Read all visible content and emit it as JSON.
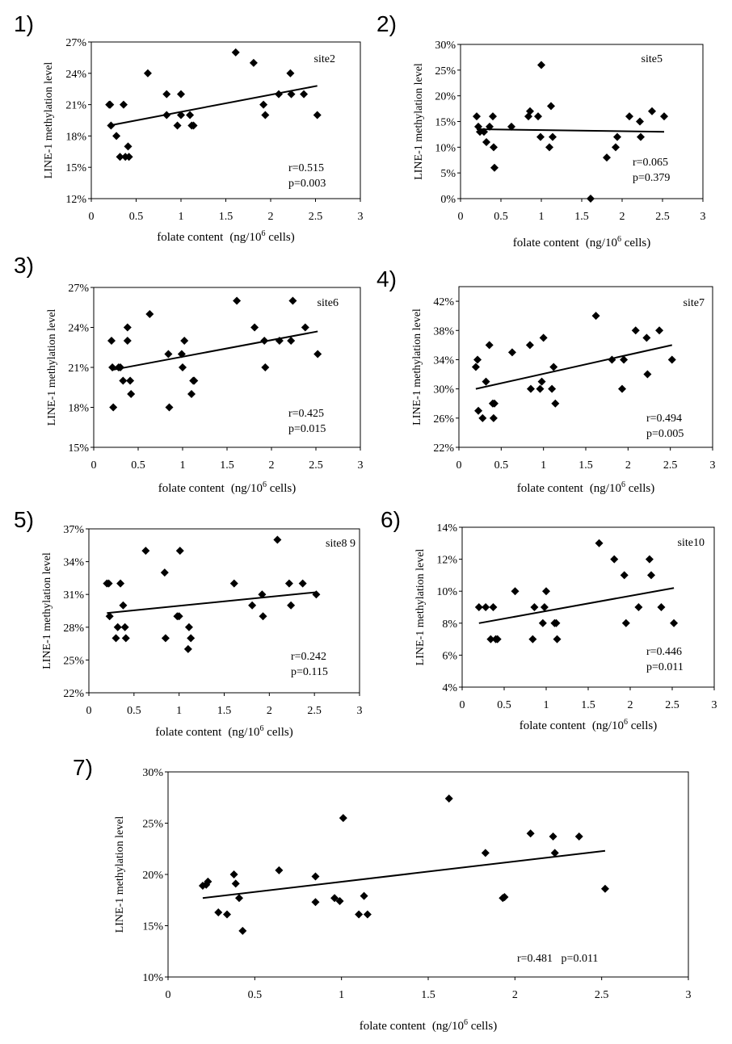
{
  "chart_data": [
    {
      "panel": "1)",
      "type": "scatter",
      "annotation": "site2",
      "stats": [
        "r=0.515",
        "p=0.003"
      ],
      "ylabel": "LINE-1 methylation level",
      "xlabel": [
        "folate content",
        "(ng/10",
        "6",
        " cells)"
      ],
      "xlim": [
        0,
        3
      ],
      "ylim": [
        0.12,
        0.27
      ],
      "xticks": [
        0,
        0.5,
        1,
        1.5,
        2,
        2.5,
        3
      ],
      "xtick_labels": [
        "0",
        "0.5",
        "1",
        "1.5",
        "2",
        "2.5",
        "3"
      ],
      "yticks": [
        0.12,
        0.15,
        0.18,
        0.21,
        0.24,
        0.27
      ],
      "ytick_labels": [
        "12%",
        "15%",
        "18%",
        "21%",
        "24%",
        "27%"
      ],
      "trend": [
        [
          0.2,
          0.19
        ],
        [
          2.52,
          0.228
        ]
      ],
      "points": [
        [
          0.2,
          0.21
        ],
        [
          0.21,
          0.21
        ],
        [
          0.22,
          0.19
        ],
        [
          0.28,
          0.18
        ],
        [
          0.32,
          0.16
        ],
        [
          0.36,
          0.21
        ],
        [
          0.38,
          0.16
        ],
        [
          0.41,
          0.17
        ],
        [
          0.42,
          0.16
        ],
        [
          0.63,
          0.24
        ],
        [
          0.84,
          0.22
        ],
        [
          0.84,
          0.2
        ],
        [
          0.96,
          0.19
        ],
        [
          1.0,
          0.22
        ],
        [
          1.0,
          0.2
        ],
        [
          1.1,
          0.2
        ],
        [
          1.12,
          0.19
        ],
        [
          1.14,
          0.19
        ],
        [
          1.61,
          0.26
        ],
        [
          1.81,
          0.25
        ],
        [
          1.92,
          0.21
        ],
        [
          1.94,
          0.2
        ],
        [
          2.09,
          0.22
        ],
        [
          2.22,
          0.24
        ],
        [
          2.23,
          0.22
        ],
        [
          2.37,
          0.22
        ],
        [
          2.52,
          0.2
        ]
      ]
    },
    {
      "panel": "2)",
      "type": "scatter",
      "annotation": "site5",
      "stats": [
        "r=0.065",
        "p=0.379"
      ],
      "ylabel": "LINE-1 methylation level",
      "xlabel": [
        "folate content",
        "(ng/10",
        "6",
        " cells)"
      ],
      "xlim": [
        0,
        3
      ],
      "ylim": [
        0,
        0.3
      ],
      "xticks": [
        0,
        0.5,
        1,
        1.5,
        2,
        2.5,
        3
      ],
      "xtick_labels": [
        "0",
        "0.5",
        "1",
        "1.5",
        "2",
        "2.5",
        "3"
      ],
      "yticks": [
        0,
        0.05,
        0.1,
        0.15,
        0.2,
        0.25,
        0.3
      ],
      "ytick_labels": [
        "0%",
        "5%",
        "10%",
        "15%",
        "20%",
        "25%",
        "30%"
      ],
      "trend": [
        [
          0.2,
          0.135
        ],
        [
          2.52,
          0.13
        ]
      ],
      "points": [
        [
          0.2,
          0.16
        ],
        [
          0.22,
          0.14
        ],
        [
          0.24,
          0.13
        ],
        [
          0.29,
          0.13
        ],
        [
          0.32,
          0.11
        ],
        [
          0.36,
          0.14
        ],
        [
          0.4,
          0.16
        ],
        [
          0.41,
          0.1
        ],
        [
          0.42,
          0.06
        ],
        [
          0.63,
          0.14
        ],
        [
          0.84,
          0.16
        ],
        [
          0.86,
          0.17
        ],
        [
          0.96,
          0.16
        ],
        [
          0.99,
          0.12
        ],
        [
          1.0,
          0.26
        ],
        [
          1.1,
          0.1
        ],
        [
          1.12,
          0.18
        ],
        [
          1.14,
          0.12
        ],
        [
          1.61,
          0.0
        ],
        [
          1.81,
          0.08
        ],
        [
          1.92,
          0.1
        ],
        [
          1.94,
          0.12
        ],
        [
          2.09,
          0.16
        ],
        [
          2.22,
          0.15
        ],
        [
          2.23,
          0.12
        ],
        [
          2.37,
          0.17
        ],
        [
          2.52,
          0.16
        ]
      ]
    },
    {
      "panel": "3)",
      "type": "scatter",
      "annotation": "site6",
      "stats": [
        "r=0.425",
        "p=0.015"
      ],
      "ylabel": "LINE-1 methylation level",
      "xlabel": [
        "folate content",
        "(ng/10",
        "6",
        " cells)"
      ],
      "xlim": [
        0,
        3
      ],
      "ylim": [
        0.15,
        0.27
      ],
      "xticks": [
        0,
        0.5,
        1,
        1.5,
        2,
        2.5,
        3
      ],
      "xtick_labels": [
        "0",
        "0.5",
        "1",
        "1.5",
        "2",
        "2.5",
        "3"
      ],
      "yticks": [
        0.15,
        0.18,
        0.21,
        0.24,
        0.27
      ],
      "ytick_labels": [
        "15%",
        "18%",
        "21%",
        "24%",
        "27%"
      ],
      "trend": [
        [
          0.2,
          0.208
        ],
        [
          2.52,
          0.237
        ]
      ],
      "points": [
        [
          0.2,
          0.23
        ],
        [
          0.21,
          0.21
        ],
        [
          0.22,
          0.18
        ],
        [
          0.28,
          0.21
        ],
        [
          0.3,
          0.21
        ],
        [
          0.33,
          0.2
        ],
        [
          0.38,
          0.23
        ],
        [
          0.38,
          0.24
        ],
        [
          0.41,
          0.2
        ],
        [
          0.42,
          0.19
        ],
        [
          0.63,
          0.25
        ],
        [
          0.84,
          0.22
        ],
        [
          0.85,
          0.18
        ],
        [
          0.99,
          0.22
        ],
        [
          1.0,
          0.21
        ],
        [
          1.02,
          0.23
        ],
        [
          1.1,
          0.19
        ],
        [
          1.12,
          0.2
        ],
        [
          1.13,
          0.2
        ],
        [
          1.61,
          0.26
        ],
        [
          1.81,
          0.24
        ],
        [
          1.92,
          0.23
        ],
        [
          1.93,
          0.21
        ],
        [
          2.09,
          0.23
        ],
        [
          2.22,
          0.23
        ],
        [
          2.24,
          0.26
        ],
        [
          2.38,
          0.24
        ],
        [
          2.52,
          0.22
        ]
      ]
    },
    {
      "panel": "4)",
      "type": "scatter",
      "annotation": "site7",
      "stats": [
        "r=0.494",
        "p=0.005"
      ],
      "ylabel": "LINE-1 methylation level",
      "xlabel": [
        "folate content",
        "(ng/10",
        "6",
        " cells)"
      ],
      "xlim": [
        0,
        3
      ],
      "ylim": [
        0.22,
        0.44
      ],
      "xticks": [
        0,
        0.5,
        1,
        1.5,
        2,
        2.5,
        3
      ],
      "xtick_labels": [
        "0",
        "0.5",
        "1",
        "1.5",
        "2",
        "2.5",
        "3"
      ],
      "yticks": [
        0.22,
        0.26,
        0.3,
        0.34,
        0.38,
        0.42
      ],
      "ytick_labels": [
        "22%",
        "26%",
        "30%",
        "34%",
        "38%",
        "42%"
      ],
      "trend": [
        [
          0.2,
          0.3
        ],
        [
          2.52,
          0.36
        ]
      ],
      "points": [
        [
          0.2,
          0.33
        ],
        [
          0.22,
          0.34
        ],
        [
          0.23,
          0.27
        ],
        [
          0.28,
          0.26
        ],
        [
          0.32,
          0.31
        ],
        [
          0.36,
          0.36
        ],
        [
          0.4,
          0.28
        ],
        [
          0.41,
          0.26
        ],
        [
          0.42,
          0.28
        ],
        [
          0.63,
          0.35
        ],
        [
          0.84,
          0.36
        ],
        [
          0.85,
          0.3
        ],
        [
          0.96,
          0.3
        ],
        [
          0.98,
          0.31
        ],
        [
          1.0,
          0.37
        ],
        [
          1.1,
          0.3
        ],
        [
          1.12,
          0.33
        ],
        [
          1.14,
          0.28
        ],
        [
          1.62,
          0.4
        ],
        [
          1.81,
          0.34
        ],
        [
          1.93,
          0.3
        ],
        [
          1.95,
          0.34
        ],
        [
          2.09,
          0.38
        ],
        [
          2.22,
          0.37
        ],
        [
          2.23,
          0.32
        ],
        [
          2.37,
          0.38
        ],
        [
          2.52,
          0.34
        ]
      ]
    },
    {
      "panel": "5)",
      "type": "scatter",
      "annotation": "site8 9",
      "stats": [
        "r=0.242",
        "p=0.115"
      ],
      "ylabel": "LINE-1 methylation level",
      "xlabel": [
        "folate content",
        "(ng/10",
        "6",
        " cells)"
      ],
      "xlim": [
        0,
        3
      ],
      "ylim": [
        0.22,
        0.37
      ],
      "xticks": [
        0,
        0.5,
        1,
        1.5,
        2,
        2.5,
        3
      ],
      "xtick_labels": [
        "0",
        "0.5",
        "1",
        "1.5",
        "2",
        "2.5",
        "3"
      ],
      "yticks": [
        0.22,
        0.25,
        0.28,
        0.31,
        0.34,
        0.37
      ],
      "ytick_labels": [
        "22%",
        "25%",
        "28%",
        "31%",
        "34%",
        "37%"
      ],
      "trend": [
        [
          0.2,
          0.293
        ],
        [
          2.52,
          0.312
        ]
      ],
      "points": [
        [
          0.2,
          0.32
        ],
        [
          0.22,
          0.32
        ],
        [
          0.23,
          0.29
        ],
        [
          0.3,
          0.27
        ],
        [
          0.32,
          0.28
        ],
        [
          0.35,
          0.32
        ],
        [
          0.38,
          0.3
        ],
        [
          0.4,
          0.28
        ],
        [
          0.41,
          0.27
        ],
        [
          0.63,
          0.35
        ],
        [
          0.84,
          0.33
        ],
        [
          0.85,
          0.27
        ],
        [
          0.98,
          0.29
        ],
        [
          1.0,
          0.29
        ],
        [
          1.01,
          0.35
        ],
        [
          1.1,
          0.26
        ],
        [
          1.11,
          0.28
        ],
        [
          1.13,
          0.27
        ],
        [
          1.61,
          0.32
        ],
        [
          1.81,
          0.3
        ],
        [
          1.92,
          0.31
        ],
        [
          1.93,
          0.29
        ],
        [
          2.09,
          0.36
        ],
        [
          2.22,
          0.32
        ],
        [
          2.24,
          0.3
        ],
        [
          2.37,
          0.32
        ],
        [
          2.52,
          0.31
        ]
      ]
    },
    {
      "panel": "6)",
      "type": "scatter",
      "annotation": "site10",
      "stats": [
        "r=0.446",
        "p=0.011"
      ],
      "ylabel": "LINE-1 methylation level",
      "xlabel": [
        "folate content",
        "(ng/10",
        "6",
        " cells)"
      ],
      "xlim": [
        0,
        3
      ],
      "ylim": [
        0.04,
        0.14
      ],
      "xticks": [
        0,
        0.5,
        1,
        1.5,
        2,
        2.5,
        3
      ],
      "xtick_labels": [
        "0",
        "0.5",
        "1",
        "1.5",
        "2",
        "2.5",
        "3"
      ],
      "yticks": [
        0.04,
        0.06,
        0.08,
        0.1,
        0.12,
        0.14
      ],
      "ytick_labels": [
        "4%",
        "6%",
        "8%",
        "10%",
        "12%",
        "14%"
      ],
      "trend": [
        [
          0.2,
          0.08
        ],
        [
          2.52,
          0.102
        ]
      ],
      "points": [
        [
          0.2,
          0.09
        ],
        [
          0.28,
          0.09
        ],
        [
          0.34,
          0.07
        ],
        [
          0.37,
          0.09
        ],
        [
          0.4,
          0.07
        ],
        [
          0.42,
          0.07
        ],
        [
          0.63,
          0.1
        ],
        [
          0.84,
          0.07
        ],
        [
          0.86,
          0.09
        ],
        [
          0.96,
          0.08
        ],
        [
          0.98,
          0.09
        ],
        [
          1.0,
          0.1
        ],
        [
          1.1,
          0.08
        ],
        [
          1.12,
          0.08
        ],
        [
          1.13,
          0.07
        ],
        [
          1.63,
          0.13
        ],
        [
          1.81,
          0.12
        ],
        [
          1.93,
          0.11
        ],
        [
          1.95,
          0.08
        ],
        [
          2.1,
          0.09
        ],
        [
          2.23,
          0.12
        ],
        [
          2.25,
          0.11
        ],
        [
          2.37,
          0.09
        ],
        [
          2.52,
          0.08
        ]
      ]
    },
    {
      "panel": "7)",
      "type": "scatter",
      "annotation": "",
      "stats": [
        "r=0.481   p=0.011"
      ],
      "ylabel": "LINE-1 methylation level",
      "xlabel": [
        "folate content",
        "(ng/10",
        "6",
        " cells)"
      ],
      "xlim": [
        0,
        3
      ],
      "ylim": [
        0.1,
        0.3
      ],
      "xticks": [
        0,
        0.5,
        1,
        1.5,
        2,
        2.5,
        3
      ],
      "xtick_labels": [
        "0",
        "0.5",
        "1",
        "1.5",
        "2",
        "2.5",
        "3"
      ],
      "yticks": [
        0.1,
        0.15,
        0.2,
        0.25,
        0.3
      ],
      "ytick_labels": [
        "10%",
        "15%",
        "20%",
        "25%",
        "30%"
      ],
      "trend": [
        [
          0.2,
          0.177
        ],
        [
          2.52,
          0.223
        ]
      ],
      "points": [
        [
          0.2,
          0.189
        ],
        [
          0.22,
          0.19
        ],
        [
          0.23,
          0.193
        ],
        [
          0.29,
          0.163
        ],
        [
          0.34,
          0.161
        ],
        [
          0.38,
          0.2
        ],
        [
          0.39,
          0.191
        ],
        [
          0.41,
          0.177
        ],
        [
          0.43,
          0.145
        ],
        [
          0.64,
          0.204
        ],
        [
          0.85,
          0.198
        ],
        [
          0.85,
          0.173
        ],
        [
          0.96,
          0.177
        ],
        [
          0.99,
          0.174
        ],
        [
          1.01,
          0.255
        ],
        [
          1.1,
          0.161
        ],
        [
          1.13,
          0.179
        ],
        [
          1.15,
          0.161
        ],
        [
          1.62,
          0.274
        ],
        [
          1.83,
          0.221
        ],
        [
          1.93,
          0.177
        ],
        [
          1.94,
          0.178
        ],
        [
          2.09,
          0.24
        ],
        [
          2.22,
          0.237
        ],
        [
          2.23,
          0.221
        ],
        [
          2.37,
          0.237
        ],
        [
          2.52,
          0.186
        ]
      ]
    }
  ]
}
